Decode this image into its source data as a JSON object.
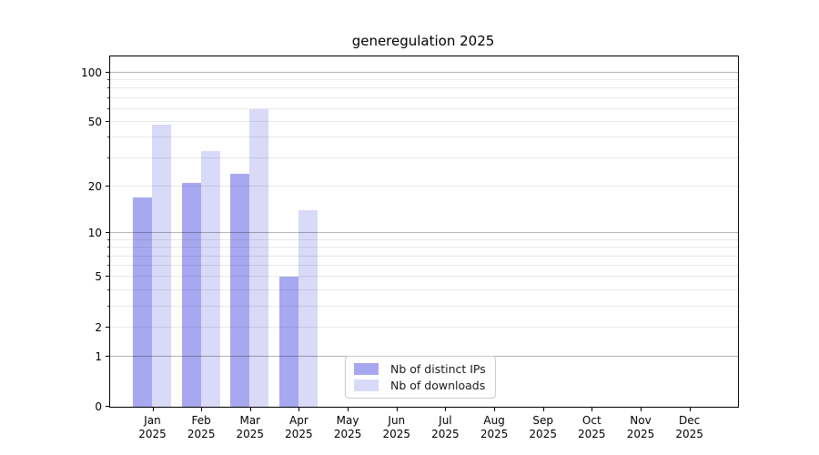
{
  "title": "generegulation 2025",
  "chart_data": {
    "type": "bar",
    "title": "generegulation 2025",
    "categories": [
      "Jan",
      "Feb",
      "Mar",
      "Apr",
      "May",
      "Jun",
      "Jul",
      "Aug",
      "Sep",
      "Oct",
      "Nov",
      "Dec"
    ],
    "category_year": "2025",
    "series": [
      {
        "name": "Nb of distinct IPs",
        "color": "#a8a8f0",
        "values": [
          17,
          21,
          24,
          5,
          0,
          0,
          0,
          0,
          0,
          0,
          0,
          0
        ]
      },
      {
        "name": "Nb of downloads",
        "color": "#d9d9f8",
        "values": [
          48,
          33,
          60,
          14,
          0,
          0,
          0,
          0,
          0,
          0,
          0,
          0
        ]
      }
    ],
    "y_scale": "log10(1+v)",
    "ylim": [
      0,
      125
    ],
    "y_ticks": [
      0,
      1,
      2,
      5,
      10,
      20,
      50,
      100
    ],
    "y_major_grid": [
      1,
      10,
      100
    ],
    "y_minor_grid": [
      2,
      3,
      4,
      5,
      6,
      7,
      8,
      9,
      20,
      30,
      40,
      50,
      60,
      70,
      80,
      90
    ],
    "grid": true,
    "legend_position": "lower center",
    "axis_color": "#000000",
    "background_color": "#ffffff"
  }
}
